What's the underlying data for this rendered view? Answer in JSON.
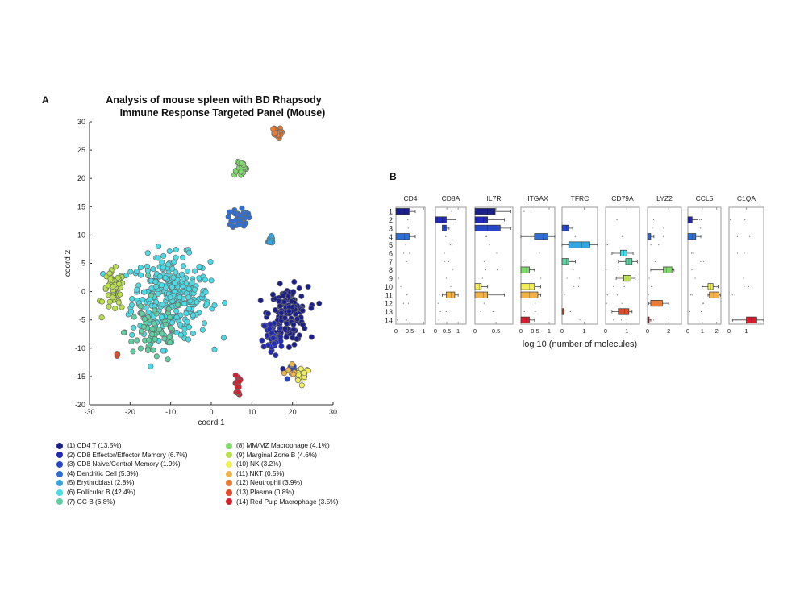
{
  "figure": {
    "panel_a_letter": "A",
    "panel_b_letter": "B",
    "title_line1": "Analysis of mouse spleen with BD Rhapsody",
    "title_line2": "Immune Response Targeted Panel (Mouse)"
  },
  "clusters": [
    {
      "id": 1,
      "label": "(1) CD4 T (13.5%)",
      "color": "#1b1f8a"
    },
    {
      "id": 2,
      "label": "(2) CD8 Effector/Effector Memory (6.7%)",
      "color": "#2129b8"
    },
    {
      "id": 3,
      "label": "(3) CD8 Naive/Central Memory (1.9%)",
      "color": "#2747c9"
    },
    {
      "id": 4,
      "label": "(4) Dendritic Cell (5.3%)",
      "color": "#2e6fd6"
    },
    {
      "id": 5,
      "label": "(5) Erythroblast (2.8%)",
      "color": "#36a6e3"
    },
    {
      "id": 6,
      "label": "(6) Follicular B (42.4%)",
      "color": "#49dce6"
    },
    {
      "id": 7,
      "label": "(7) GC B (6.8%)",
      "color": "#5ecfa0"
    },
    {
      "id": 8,
      "label": "(8) MM/MZ Macrophage (4.1%)",
      "color": "#7fdc6a"
    },
    {
      "id": 9,
      "label": "(9) Marginal Zone B (4.6%)",
      "color": "#b9e04a"
    },
    {
      "id": 10,
      "label": "(10) NK (3.2%)",
      "color": "#f2ee5a"
    },
    {
      "id": 11,
      "label": "(11) NKT (0.5%)",
      "color": "#f2b24a"
    },
    {
      "id": 12,
      "label": "(12) Neutrophil (3.9%)",
      "color": "#ec7a30"
    },
    {
      "id": 13,
      "label": "(13) Plasma (0.8%)",
      "color": "#e04a2a"
    },
    {
      "id": 14,
      "label": "(14) Red Pulp Macrophage (3.5%)",
      "color": "#d61e2e"
    }
  ],
  "chart_data": [
    {
      "type": "scatter",
      "title": "Analysis of mouse spleen with BD Rhapsody Immune Response Targeted Panel (Mouse)",
      "xlabel": "coord 1",
      "ylabel": "coord 2",
      "xlim": [
        -30,
        30
      ],
      "ylim": [
        -20,
        30
      ],
      "xticks": [
        "-30",
        "-20",
        "-10",
        "0",
        "10",
        "20",
        "30"
      ],
      "yticks": [
        "-20",
        "-15",
        "-10",
        "-5",
        "0",
        "5",
        "10",
        "15",
        "20",
        "25",
        "30"
      ],
      "grid": false,
      "legend": "bottom",
      "cluster_regions": [
        {
          "cluster": 6,
          "center": [
            -10,
            -1
          ],
          "spread": [
            8,
            6
          ],
          "count": 330
        },
        {
          "cluster": 7,
          "center": [
            -14,
            -7
          ],
          "spread": [
            6,
            5
          ],
          "count": 60
        },
        {
          "cluster": 9,
          "center": [
            -24,
            0
          ],
          "spread": [
            2.2,
            3
          ],
          "count": 55
        },
        {
          "cluster": 1,
          "center": [
            19,
            -4
          ],
          "spread": [
            4,
            4
          ],
          "count": 150
        },
        {
          "cluster": 2,
          "center": [
            15,
            -8
          ],
          "spread": [
            2,
            3
          ],
          "count": 45
        },
        {
          "cluster": 3,
          "center": [
            20,
            -14
          ],
          "spread": [
            1.5,
            1.5
          ],
          "count": 10
        },
        {
          "cluster": 10,
          "center": [
            22.5,
            -14.5
          ],
          "spread": [
            1.6,
            1.2
          ],
          "count": 22
        },
        {
          "cluster": 11,
          "center": [
            20,
            -14.5
          ],
          "spread": [
            1.8,
            1.5
          ],
          "count": 7
        },
        {
          "cluster": 4,
          "center": [
            7,
            13
          ],
          "spread": [
            1.6,
            1.6
          ],
          "count": 40
        },
        {
          "cluster": 8,
          "center": [
            7,
            22
          ],
          "spread": [
            1.5,
            1.2
          ],
          "count": 22
        },
        {
          "cluster": 5,
          "center": [
            14.5,
            9
          ],
          "spread": [
            0.8,
            0.6
          ],
          "count": 14
        },
        {
          "cluster": 12,
          "center": [
            16,
            28
          ],
          "spread": [
            1,
            0.8
          ],
          "count": 25
        },
        {
          "cluster": 14,
          "center": [
            6.5,
            -16.5
          ],
          "spread": [
            0.5,
            1.5
          ],
          "count": 20
        },
        {
          "cluster": 13,
          "center": [
            -23.2,
            -11.2
          ],
          "spread": [
            0.15,
            0.2
          ],
          "count": 3
        }
      ]
    },
    {
      "type": "box",
      "xlabel": "log 10 (number of molecules)",
      "row_labels": [
        "1",
        "2",
        "3",
        "4",
        "5",
        "6",
        "7",
        "8",
        "9",
        "10",
        "11",
        "12",
        "13",
        "14"
      ],
      "genes": [
        {
          "name": "CD4",
          "xlim": [
            0,
            1.05
          ],
          "xticks": [
            "0",
            "0.5",
            "1"
          ],
          "tick_values": [
            0,
            0.5,
            1
          ],
          "boxes": [
            {
              "row": 1,
              "q1": 0,
              "median": 0.3,
              "q3": 0.48,
              "whisker_high": 0.7
            },
            {
              "row": 4,
              "q1": 0,
              "median": 0.3,
              "q3": 0.48,
              "whisker_high": 0.7
            }
          ]
        },
        {
          "name": "CD8A",
          "xlim": [
            0,
            1.35
          ],
          "xticks": [
            "0",
            "0.5",
            "1"
          ],
          "tick_values": [
            0,
            0.5,
            1
          ],
          "boxes": [
            {
              "row": 2,
              "q1": 0,
              "median": 0.3,
              "q3": 0.48,
              "whisker_high": 0.9
            },
            {
              "row": 3,
              "q1": 0.3,
              "median": 0.4,
              "q3": 0.48,
              "whisker_high": 0.6
            },
            {
              "row": 11,
              "q1": 0.48,
              "median": 0.7,
              "q3": 0.85,
              "whisker_low": 0.3,
              "whisker_high": 1.0
            }
          ]
        },
        {
          "name": "IL7R",
          "xlim": [
            0,
            0.9
          ],
          "xticks": [
            "0",
            "0.5"
          ],
          "tick_values": [
            0,
            0.5
          ],
          "boxes": [
            {
              "row": 1,
              "q1": 0,
              "median": 0.3,
              "q3": 0.48,
              "whisker_high": 0.85
            },
            {
              "row": 2,
              "q1": 0,
              "median": 0.2,
              "q3": 0.3,
              "whisker_high": 0.7
            },
            {
              "row": 3,
              "q1": 0,
              "median": 0.3,
              "q3": 0.6,
              "whisker_high": 0.85
            },
            {
              "row": 10,
              "q1": 0,
              "median": 0.1,
              "q3": 0.15,
              "whisker_high": 0.3
            },
            {
              "row": 11,
              "q1": 0,
              "median": 0.2,
              "q3": 0.3,
              "whisker_high": 0.7
            }
          ]
        },
        {
          "name": "ITGAX",
          "xlim": [
            0,
            1.2
          ],
          "xticks": [
            "0",
            "0.5",
            "1"
          ],
          "tick_values": [
            0,
            0.5,
            1
          ],
          "boxes": [
            {
              "row": 4,
              "q1": 0.48,
              "median": 0.78,
              "q3": 0.95,
              "whisker_low": 0,
              "whisker_high": 1.2
            },
            {
              "row": 8,
              "q1": 0,
              "median": 0.2,
              "q3": 0.3,
              "whisker_high": 0.48
            },
            {
              "row": 10,
              "q1": 0,
              "median": 0.3,
              "q3": 0.48,
              "whisker_high": 0.7
            },
            {
              "row": 11,
              "q1": 0,
              "median": 0.3,
              "q3": 0.6,
              "whisker_high": 0.7
            },
            {
              "row": 14,
              "q1": 0,
              "median": 0.2,
              "q3": 0.3,
              "whisker_high": 0.48
            }
          ]
        },
        {
          "name": "TFRC",
          "xlim": [
            0,
            1.6
          ],
          "xticks": [
            "0",
            "1"
          ],
          "tick_values": [
            0,
            1
          ],
          "boxes": [
            {
              "row": 3,
              "q1": 0,
              "median": 0.2,
              "q3": 0.3,
              "whisker_high": 0.48
            },
            {
              "row": 5,
              "q1": 0.3,
              "median": 0.9,
              "q3": 1.25,
              "whisker_low": 0,
              "whisker_high": 1.6
            },
            {
              "row": 7,
              "q1": 0,
              "median": 0.2,
              "q3": 0.3,
              "whisker_high": 0.6
            },
            {
              "row": 13,
              "q1": 0,
              "median": 0.05,
              "q3": 0.08,
              "whisker_high": 0.1
            }
          ]
        },
        {
          "name": "CD79A",
          "xlim": [
            0,
            1.6
          ],
          "xticks": [
            "0",
            "1"
          ],
          "tick_values": [
            0,
            1
          ],
          "boxes": [
            {
              "row": 6,
              "q1": 0.7,
              "median": 0.85,
              "q3": 1.0,
              "whisker_low": 0.3,
              "whisker_high": 1.3
            },
            {
              "row": 7,
              "q1": 0.95,
              "median": 1.1,
              "q3": 1.25,
              "whisker_low": 0.6,
              "whisker_high": 1.5
            },
            {
              "row": 9,
              "q1": 0.85,
              "median": 1.0,
              "q3": 1.2,
              "whisker_low": 0.5,
              "whisker_high": 1.4
            },
            {
              "row": 13,
              "q1": 0.6,
              "median": 0.9,
              "q3": 1.1,
              "whisker_low": 0.3,
              "whisker_high": 1.25
            }
          ]
        },
        {
          "name": "LYZ2",
          "xlim": [
            0,
            3.2
          ],
          "xticks": [
            "0",
            "2"
          ],
          "tick_values": [
            0,
            2
          ],
          "boxes": [
            {
              "row": 4,
              "q1": 0,
              "median": 0.15,
              "q3": 0.3,
              "whisker_high": 0.6
            },
            {
              "row": 8,
              "q1": 1.5,
              "median": 1.8,
              "q3": 2.3,
              "whisker_low": 0.3,
              "whisker_high": 2.5
            },
            {
              "row": 12,
              "q1": 0.3,
              "median": 0.8,
              "q3": 1.4,
              "whisker_low": 0.1,
              "whisker_high": 2.0
            },
            {
              "row": 14,
              "q1": 0,
              "median": 0.1,
              "q3": 0.15,
              "whisker_high": 0.3
            }
          ]
        },
        {
          "name": "CCL5",
          "xlim": [
            0,
            2.3
          ],
          "xticks": [
            "0",
            "1",
            "2"
          ],
          "tick_values": [
            0,
            1,
            2
          ],
          "boxes": [
            {
              "row": 2,
              "q1": 0,
              "median": 0.15,
              "q3": 0.3,
              "whisker_high": 0.7
            },
            {
              "row": 4,
              "q1": 0,
              "median": 0.3,
              "q3": 0.55,
              "whisker_high": 0.9
            },
            {
              "row": 10,
              "q1": 1.4,
              "median": 1.6,
              "q3": 1.75,
              "whisker_low": 1.0,
              "whisker_high": 2.1
            },
            {
              "row": 11,
              "q1": 1.5,
              "median": 1.8,
              "q3": 2.15,
              "whisker_low": 1.4,
              "whisker_high": 2.25
            }
          ]
        },
        {
          "name": "C1QA",
          "xlim": [
            0,
            2.0
          ],
          "xticks": [
            "0",
            "1"
          ],
          "tick_values": [
            0,
            1
          ],
          "boxes": [
            {
              "row": 14,
              "q1": 1.0,
              "median": 1.3,
              "q3": 1.6,
              "whisker_low": 0.2,
              "whisker_high": 2.0
            }
          ]
        }
      ]
    }
  ]
}
